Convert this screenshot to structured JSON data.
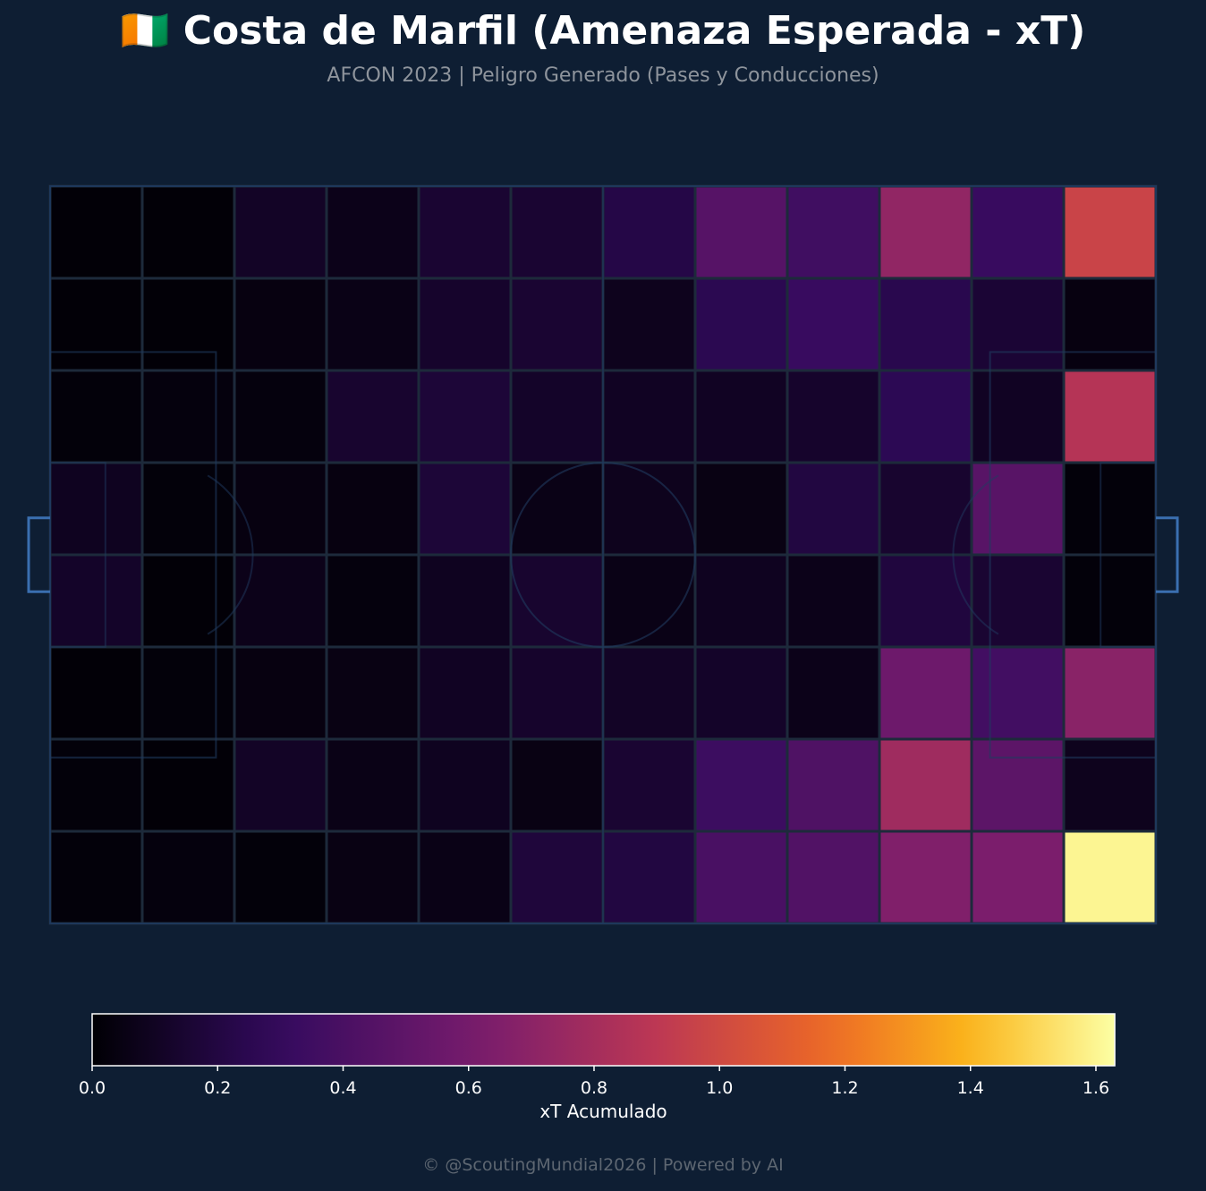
{
  "title": "🇨🇮 Costa de Marfil (Amenaza Esperada - xT)",
  "subtitle": "AFCON 2023 | Peligro Generado (Pases y Conducciones)",
  "footer": "© @ScoutingMundial2026 | Powered by AI",
  "colors": {
    "background": "#0e1e33",
    "cell_border": "#1d2a3b",
    "pitch_lines": "#1f3a5f",
    "goal": "#3a6fb0",
    "colormap": [
      "#000004",
      "#320a5e",
      "#781c6d",
      "#bc3754",
      "#ed6925",
      "#fbb61a",
      "#fcffa4"
    ],
    "colormap_positions": [
      0,
      0.18,
      0.38,
      0.55,
      0.72,
      0.86,
      1.0
    ]
  },
  "chart_data": {
    "type": "heatmap",
    "grid": {
      "rows": 8,
      "cols": 12
    },
    "colorbar": {
      "label": "xT Acumulado",
      "range": [
        0,
        1.63
      ],
      "ticks": [
        "0.0",
        "0.2",
        "0.4",
        "0.6",
        "0.8",
        "1.0",
        "1.2",
        "1.4",
        "1.6"
      ]
    },
    "values": [
      [
        0.01,
        0.01,
        0.11,
        0.07,
        0.15,
        0.15,
        0.22,
        0.46,
        0.36,
        0.72,
        0.32,
        0.97
      ],
      [
        0.01,
        0.01,
        0.04,
        0.06,
        0.13,
        0.15,
        0.08,
        0.25,
        0.32,
        0.24,
        0.16,
        0.04
      ],
      [
        0.02,
        0.03,
        0.03,
        0.14,
        0.17,
        0.12,
        0.1,
        0.1,
        0.13,
        0.26,
        0.1,
        0.87
      ],
      [
        0.09,
        0.02,
        0.04,
        0.04,
        0.17,
        0.06,
        0.08,
        0.05,
        0.2,
        0.14,
        0.47,
        0.02
      ],
      [
        0.12,
        0.01,
        0.07,
        0.03,
        0.09,
        0.14,
        0.06,
        0.09,
        0.07,
        0.19,
        0.15,
        0.02
      ],
      [
        0.01,
        0.02,
        0.04,
        0.05,
        0.1,
        0.13,
        0.11,
        0.12,
        0.07,
        0.57,
        0.37,
        0.69
      ],
      [
        0.02,
        0.01,
        0.11,
        0.06,
        0.09,
        0.05,
        0.15,
        0.34,
        0.43,
        0.78,
        0.49,
        0.08
      ],
      [
        0.02,
        0.03,
        0.02,
        0.05,
        0.06,
        0.18,
        0.2,
        0.4,
        0.44,
        0.65,
        0.63,
        1.6
      ]
    ]
  }
}
